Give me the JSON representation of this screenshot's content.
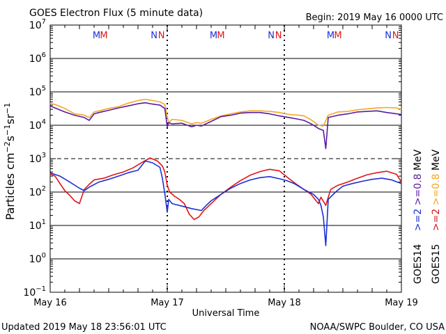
{
  "header": {
    "title": "GOES Electron Flux (5 minute data)",
    "begin": "Begin: 2019 May 16 0000 UTC"
  },
  "footer": {
    "updated": "Updated 2019 May 18 23:56:01 UTC",
    "credit": "NOAA/SWPC Boulder, CO USA"
  },
  "chart_data": {
    "type": "line",
    "title": "GOES Electron Flux (5 minute data)",
    "xlabel": "Universal Time",
    "ylabel": "Particles cm⁻²s⁻¹sr⁻¹",
    "yscale": "log",
    "ylim": [
      0.1,
      10000000
    ],
    "xlim": [
      0,
      72
    ],
    "x_unit": "hours since 2019 May 16 0000 UTC",
    "x_tick_labels": [
      {
        "x": 0,
        "label": "May 16"
      },
      {
        "x": 24,
        "label": "May 17"
      },
      {
        "x": 48,
        "label": "May 18"
      },
      {
        "x": 72,
        "label": "May 19"
      }
    ],
    "y_ticks": [
      {
        "v": 10000000,
        "base": "10",
        "exp": "7"
      },
      {
        "v": 1000000,
        "base": "10",
        "exp": "6"
      },
      {
        "v": 100000,
        "base": "10",
        "exp": "5"
      },
      {
        "v": 10000,
        "base": "10",
        "exp": "4"
      },
      {
        "v": 1000,
        "base": "10",
        "exp": "3"
      },
      {
        "v": 100,
        "base": "10",
        "exp": "2"
      },
      {
        "v": 10,
        "base": "10",
        "exp": "1"
      },
      {
        "v": 1,
        "base": "10",
        "exp": "0"
      },
      {
        "v": 0.1,
        "base": "10",
        "exp": "−1"
      }
    ],
    "thresholds": [
      {
        "value": 1000,
        "style": "dashed"
      }
    ],
    "markers": [
      {
        "x": 9.5,
        "label": "M",
        "color": "#1a2fd6"
      },
      {
        "x": 11.0,
        "label": "M",
        "color": "#e01414"
      },
      {
        "x": 21.3,
        "label": "N",
        "color": "#1a2fd6"
      },
      {
        "x": 22.8,
        "label": "N",
        "color": "#e01414"
      },
      {
        "x": 33.5,
        "label": "M",
        "color": "#1a2fd6"
      },
      {
        "x": 35.0,
        "label": "M",
        "color": "#e01414"
      },
      {
        "x": 45.3,
        "label": "N",
        "color": "#1a2fd6"
      },
      {
        "x": 46.8,
        "label": "N",
        "color": "#e01414"
      },
      {
        "x": 57.5,
        "label": "M",
        "color": "#1a2fd6"
      },
      {
        "x": 59.0,
        "label": "M",
        "color": "#e01414"
      },
      {
        "x": 69.3,
        "label": "N",
        "color": "#1a2fd6"
      },
      {
        "x": 70.8,
        "label": "N",
        "color": "#e01414"
      }
    ],
    "series": [
      {
        "name": "GOES15 >=0.8 MeV",
        "color": "#f5a623",
        "x": [
          0,
          1,
          3,
          5,
          7,
          8,
          9,
          10,
          12,
          14,
          16,
          18,
          19.5,
          21,
          22.5,
          23.5,
          24,
          24.3,
          25,
          27,
          29,
          30,
          31,
          33,
          35,
          37,
          39,
          41,
          43,
          45,
          47,
          49,
          51,
          52,
          53,
          54,
          55,
          56,
          57,
          59,
          61,
          63,
          65,
          67,
          69,
          71,
          72
        ],
        "values": [
          45000,
          42000,
          32000,
          22000,
          20000,
          17000,
          25000,
          27000,
          32000,
          36000,
          46000,
          55000,
          60000,
          55000,
          50000,
          42000,
          18000,
          12000,
          15000,
          14000,
          11000,
          12000,
          11500,
          15000,
          19000,
          22000,
          25000,
          27000,
          27000,
          26000,
          24000,
          21000,
          20000,
          19000,
          16000,
          13000,
          10000,
          9500,
          20000,
          25000,
          26000,
          29000,
          31000,
          33000,
          34000,
          33000,
          30000
        ]
      },
      {
        "name": "GOES14 >=0.8 MeV",
        "color": "#5a1aa0",
        "x": [
          0,
          1,
          3,
          5,
          7,
          8,
          9,
          10,
          12,
          14,
          16,
          18,
          19.5,
          21,
          22.5,
          23.5,
          24,
          24.3,
          25,
          27,
          29,
          30,
          31,
          33,
          35,
          37,
          39,
          41,
          43,
          45,
          47,
          49,
          51,
          52,
          53,
          54,
          55,
          56,
          56.5,
          57,
          59,
          61,
          63,
          65,
          67,
          69,
          71,
          72
        ],
        "values": [
          38000,
          33000,
          25000,
          20000,
          17000,
          14000,
          22000,
          24000,
          28000,
          33000,
          38000,
          44000,
          47000,
          43000,
          40000,
          32000,
          9000,
          12000,
          11000,
          11500,
          9000,
          10000,
          9500,
          13000,
          18000,
          20000,
          23000,
          24000,
          24000,
          22000,
          19000,
          17000,
          15000,
          14000,
          12000,
          10000,
          8000,
          7000,
          2000,
          17000,
          20000,
          22000,
          25000,
          26000,
          27000,
          24000,
          22000,
          21000
        ]
      },
      {
        "name": "GOES15 >=2 MeV",
        "color": "#e01414",
        "x": [
          0,
          1,
          2,
          3,
          4,
          5,
          6,
          7,
          8,
          9,
          11,
          13,
          15,
          17,
          19,
          20.5,
          22,
          23,
          23.5,
          24,
          24.5,
          25.5,
          26.5,
          27.5,
          28.5,
          29.5,
          30.5,
          31.5,
          33,
          35,
          37,
          39,
          41,
          43,
          45,
          47,
          49,
          50.5,
          52,
          53.5,
          54.5,
          55,
          55.5,
          56.5,
          57.5,
          59,
          61,
          63,
          65,
          67,
          69,
          71,
          72
        ],
        "values": [
          350,
          300,
          180,
          110,
          80,
          55,
          45,
          120,
          170,
          230,
          260,
          330,
          400,
          530,
          800,
          1050,
          850,
          600,
          400,
          160,
          100,
          75,
          60,
          45,
          22,
          15,
          18,
          28,
          45,
          85,
          140,
          220,
          320,
          410,
          480,
          430,
          250,
          170,
          120,
          85,
          55,
          45,
          70,
          40,
          120,
          160,
          200,
          260,
          330,
          380,
          420,
          340,
          200
        ]
      },
      {
        "name": "GOES14 >=2 MeV",
        "color": "#1a2fd6",
        "x": [
          0,
          2,
          4,
          6,
          7,
          8,
          10,
          12,
          14,
          16,
          18,
          19.5,
          21,
          22.5,
          23,
          23.5,
          24,
          24.3,
          25,
          27,
          29,
          31,
          32,
          33,
          35,
          37,
          39,
          41,
          43,
          45,
          47,
          48.5,
          50,
          52,
          54,
          55,
          55.5,
          56,
          56.5,
          57,
          58.5,
          60,
          62,
          64,
          66,
          68,
          70,
          72
        ],
        "values": [
          380,
          300,
          200,
          130,
          110,
          140,
          200,
          240,
          300,
          380,
          450,
          850,
          750,
          550,
          260,
          90,
          25,
          60,
          45,
          38,
          32,
          28,
          40,
          55,
          85,
          130,
          180,
          230,
          270,
          290,
          250,
          220,
          180,
          120,
          85,
          60,
          40,
          18,
          2.5,
          60,
          100,
          150,
          180,
          210,
          240,
          260,
          230,
          180
        ]
      }
    ],
    "right_legend": [
      {
        "text": "GOES14",
        "color": "#000000"
      },
      {
        "text": ">=2",
        "color": "#1a2fd6"
      },
      {
        "text": ">=0.8",
        "color": "#5a1aa0"
      },
      {
        "text": "MeV",
        "color": "#000000"
      },
      {
        "text": "GOES15",
        "color": "#000000"
      },
      {
        "text": ">=2",
        "color": "#e01414"
      },
      {
        "text": ">=0.8",
        "color": "#f5a623"
      },
      {
        "text": "MeV",
        "color": "#000000"
      }
    ]
  }
}
